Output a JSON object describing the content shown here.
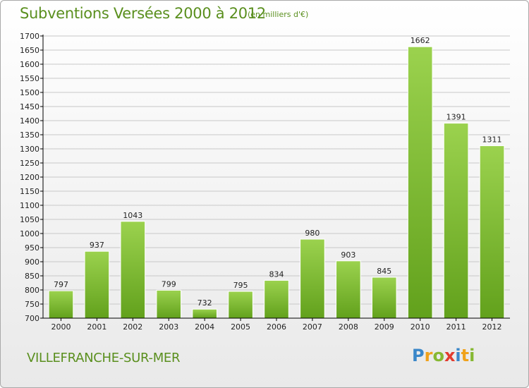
{
  "title": "Subventions Versées 2000 à 2012",
  "subtitle": "(en milliers d'€)",
  "commune": "VILLEFRANCHE-SUR-MER",
  "logo": {
    "letters": [
      "P",
      "r",
      "o",
      "x",
      "i",
      "t",
      "i"
    ],
    "colors": [
      "#3a87c9",
      "#f0a21b",
      "#86b832",
      "#e23b2e",
      "#3a87c9",
      "#f0a21b",
      "#86b832"
    ]
  },
  "colors": {
    "bar_light": "#9bd24e",
    "bar_dark": "#62a11c",
    "grid": "#c8c8c8",
    "axis": "#000000"
  },
  "chart_data": {
    "type": "bar",
    "categories": [
      "2000",
      "2001",
      "2002",
      "2003",
      "2004",
      "2005",
      "2006",
      "2007",
      "2008",
      "2009",
      "2010",
      "2011",
      "2012"
    ],
    "values": [
      797,
      937,
      1043,
      799,
      732,
      795,
      834,
      980,
      903,
      845,
      1662,
      1391,
      1311
    ],
    "ylim": [
      700,
      1700
    ],
    "ytick_step": 50,
    "yticks": [
      "700",
      "750",
      "800",
      "850",
      "900",
      "950",
      "1000",
      "1050",
      "1100",
      "1150",
      "1200",
      "1250",
      "1300",
      "1350",
      "1400",
      "1450",
      "1500",
      "1550",
      "1600",
      "1650",
      "1700"
    ],
    "grid": true
  }
}
